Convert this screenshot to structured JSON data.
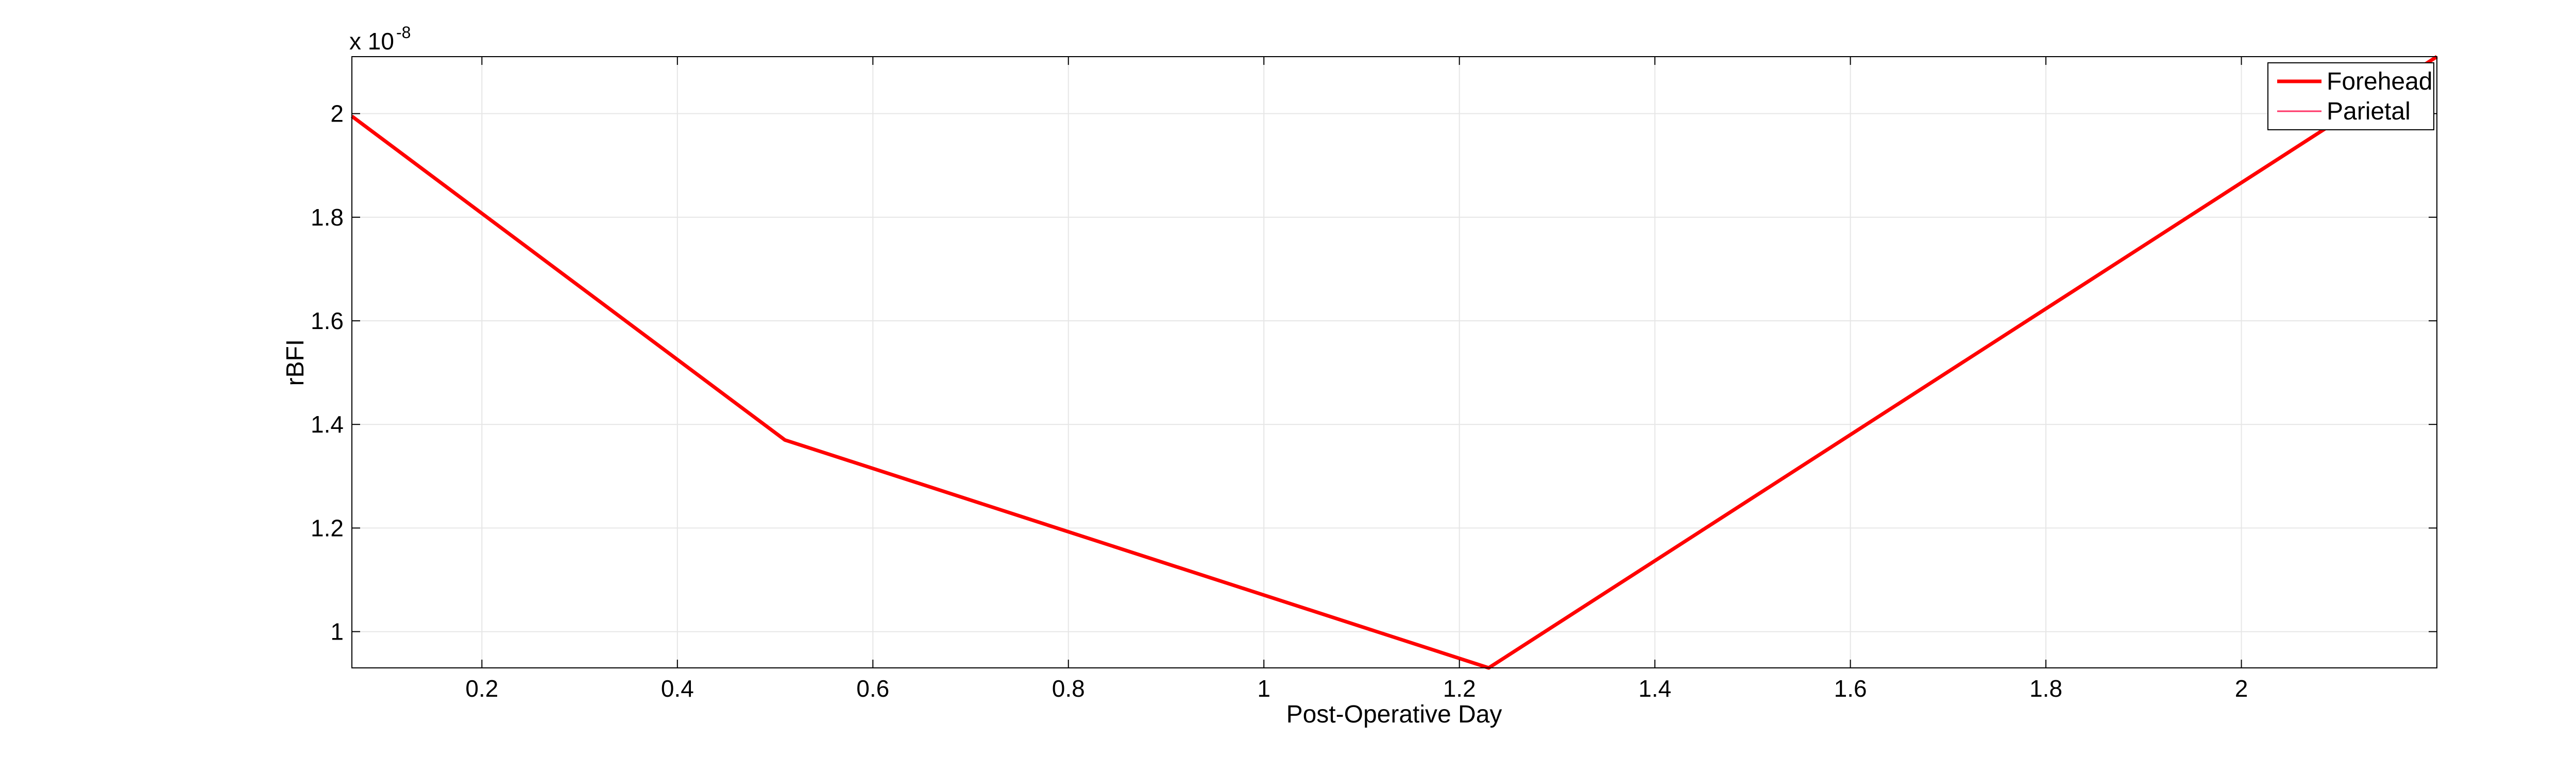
{
  "chart_data": {
    "type": "line",
    "xlabel": "Post-Operative Day",
    "ylabel": "rBFI",
    "y_exponent_base": "x 10",
    "y_exponent_power": "-8",
    "xlim": [
      0.067,
      2.2
    ],
    "ylim": [
      0.93,
      2.11
    ],
    "y_scale_factor": 1e-08,
    "x_ticks": [
      0.2,
      0.4,
      0.6,
      0.8,
      1,
      1.2,
      1.4,
      1.6,
      1.8,
      2
    ],
    "x_tick_labels": [
      "0.2",
      "0.4",
      "0.6",
      "0.8",
      "1",
      "1.2",
      "1.4",
      "1.6",
      "1.8",
      "2"
    ],
    "y_ticks": [
      1,
      1.2,
      1.4,
      1.6,
      1.8,
      2
    ],
    "y_tick_labels": [
      "1",
      "1.2",
      "1.4",
      "1.6",
      "1.8",
      "2"
    ],
    "grid": true,
    "legend_position": "top-right",
    "series": [
      {
        "name": "Forehead",
        "color": "#ff0000",
        "line_weight": "thick",
        "x": [
          0.067,
          0.51,
          1.23,
          2.2
        ],
        "y": [
          1.995,
          1.37,
          0.93,
          2.11
        ]
      },
      {
        "name": "Parietal",
        "color": "#ff3366",
        "line_weight": "thin",
        "x": [],
        "y": []
      }
    ]
  }
}
